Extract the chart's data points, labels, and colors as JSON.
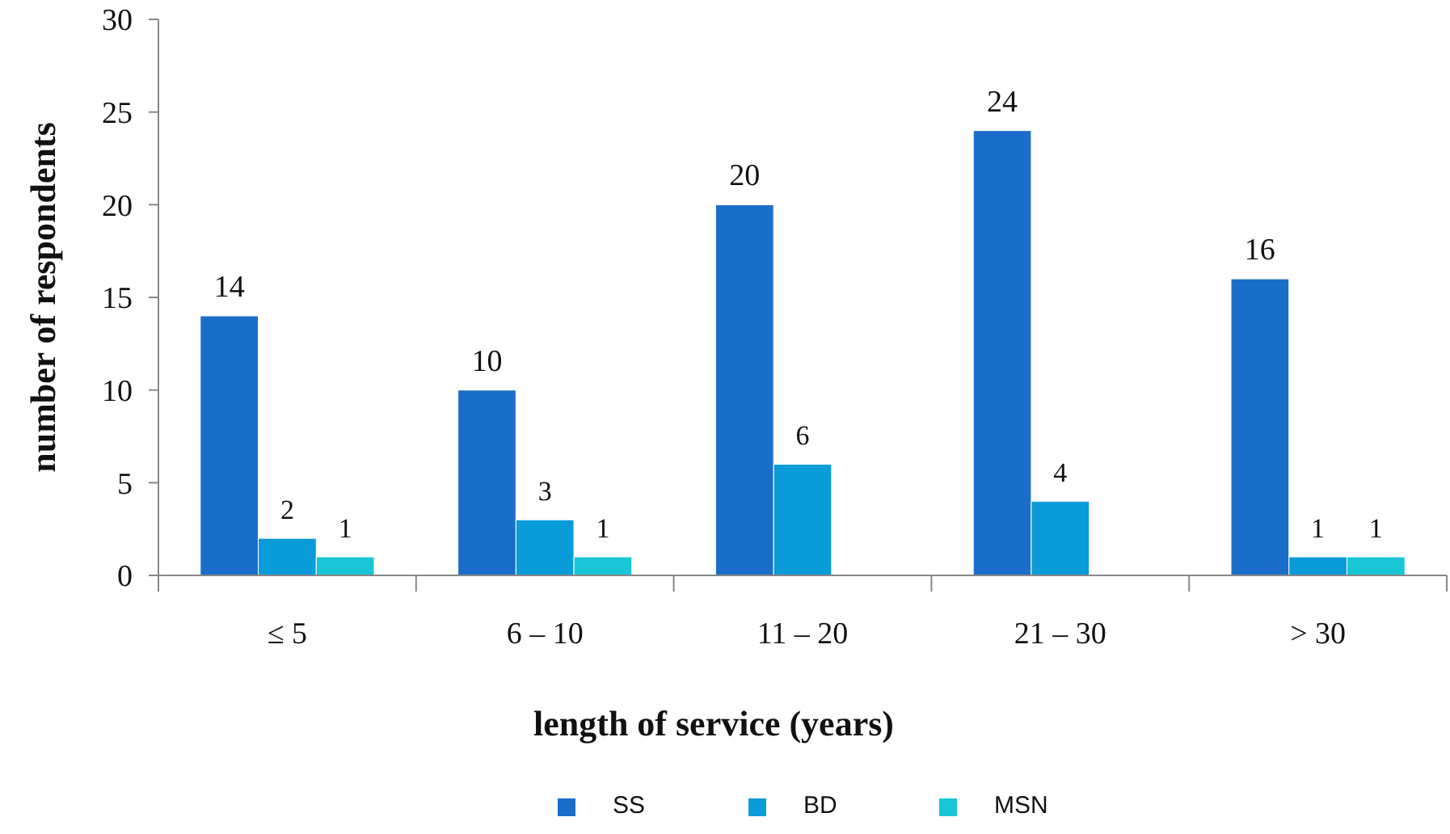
{
  "chart_data": {
    "type": "bar",
    "xlabel": "length of service (years)",
    "ylabel": "number of respondents",
    "categories": [
      "≤ 5",
      "6 – 10",
      "11 – 20",
      "21 – 30",
      "> 30"
    ],
    "series": [
      {
        "name": "SS",
        "color": "#1a6ec9",
        "values": [
          14,
          10,
          20,
          24,
          16
        ]
      },
      {
        "name": "BD",
        "color": "#0a9bd9",
        "values": [
          2,
          3,
          6,
          4,
          1
        ]
      },
      {
        "name": "MSN",
        "color": "#19c6d6",
        "values": [
          1,
          1,
          null,
          null,
          1
        ]
      }
    ],
    "ylim": [
      0,
      30
    ],
    "yticks": [
      0,
      5,
      10,
      15,
      20,
      25,
      30
    ],
    "grid": false,
    "legend": "bottom",
    "data_labels": true
  }
}
